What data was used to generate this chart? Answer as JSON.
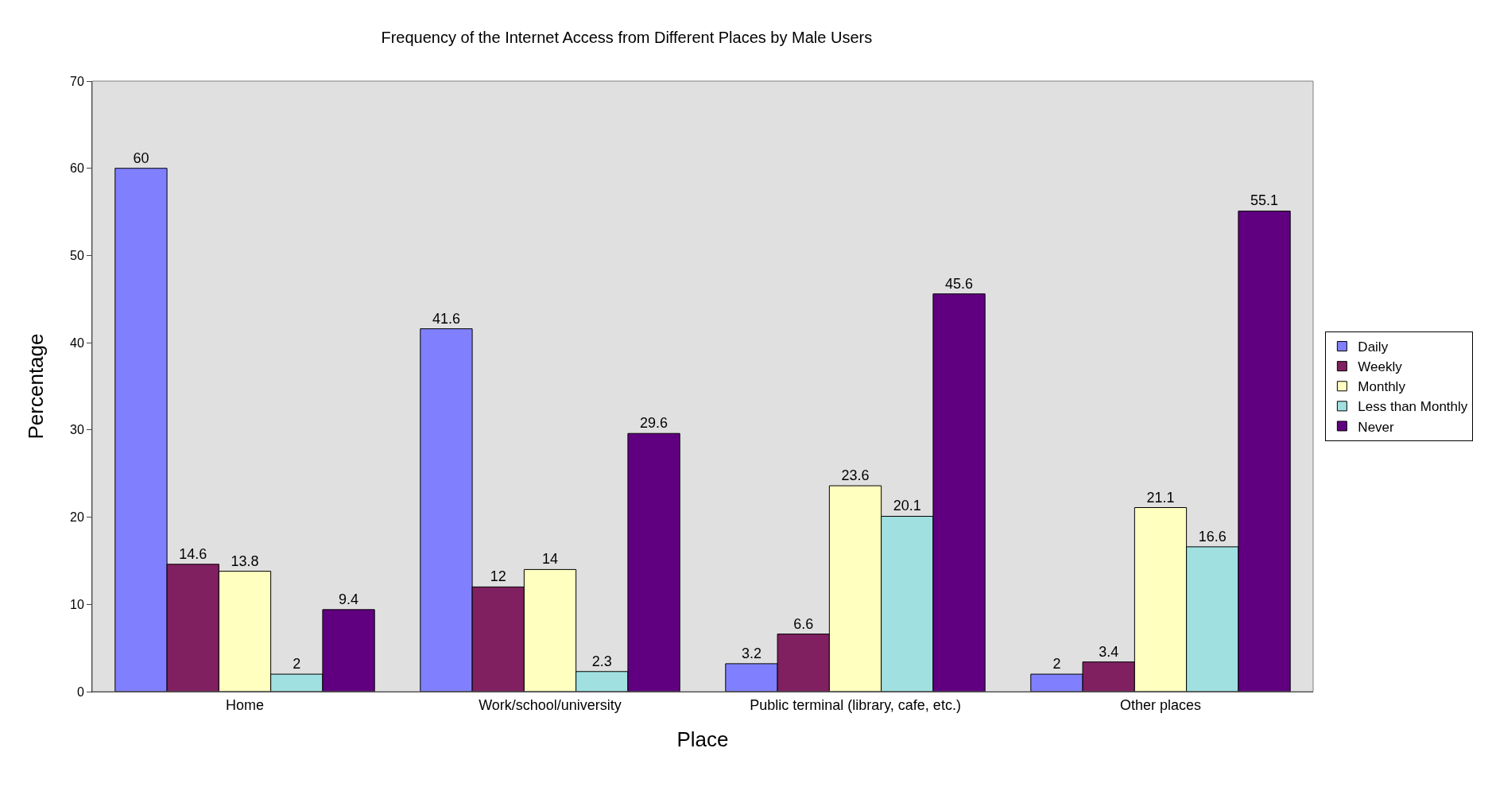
{
  "chart_data": {
    "type": "bar",
    "title": "Frequency of the Internet Access from Different Places by Male Users",
    "xlabel": "Place",
    "ylabel": "Percentage",
    "categories": [
      "Home",
      "Work/school/university",
      "Public terminal (library, cafe, etc.)",
      "Other places"
    ],
    "series": [
      {
        "name": "Daily",
        "color": "#8080ff",
        "values": [
          60,
          41.6,
          3.2,
          2
        ]
      },
      {
        "name": "Weekly",
        "color": "#802060",
        "values": [
          14.6,
          12,
          6.6,
          3.4
        ]
      },
      {
        "name": "Monthly",
        "color": "#ffffc0",
        "values": [
          13.8,
          14,
          23.6,
          21.1
        ]
      },
      {
        "name": "Less than Monthly",
        "color": "#a0e0e0",
        "values": [
          2,
          2.3,
          20.1,
          16.6
        ]
      },
      {
        "name": "Never",
        "color": "#600080",
        "values": [
          9.4,
          29.6,
          45.6,
          55.1
        ]
      }
    ],
    "ylim": [
      0,
      70
    ],
    "yticks": [
      0,
      10,
      20,
      30,
      40,
      50,
      60,
      70
    ],
    "grid": false,
    "legend": "right",
    "data_labels": true
  }
}
